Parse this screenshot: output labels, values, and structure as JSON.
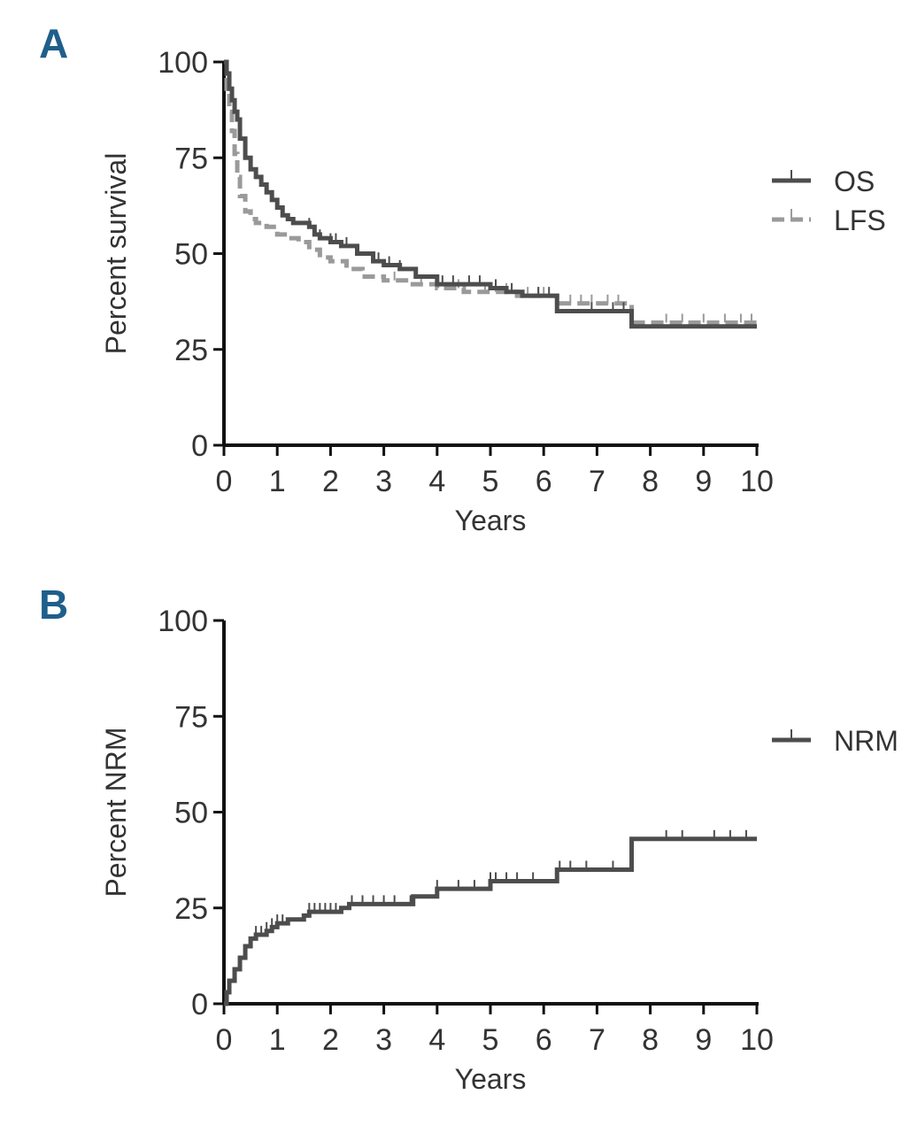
{
  "panel_color": "#1f5f8b",
  "chart_data": [
    {
      "panel_label": "A",
      "type": "line",
      "subtype": "kaplan-meier",
      "title": "",
      "xlabel": "Years",
      "ylabel": "Percent survival",
      "xlim": [
        0,
        10
      ],
      "ylim": [
        0,
        100
      ],
      "xticks": [
        0,
        1,
        2,
        3,
        4,
        5,
        6,
        7,
        8,
        9,
        10
      ],
      "xtick_labels": [
        "0",
        "1",
        "2",
        "3",
        "4",
        "5",
        "6",
        "7",
        "8",
        "9",
        "10"
      ],
      "yticks": [
        0,
        25,
        50,
        75,
        100
      ],
      "ytick_labels": [
        "0",
        "25",
        "50",
        "75",
        "100"
      ],
      "legend_position": "right",
      "series": [
        {
          "name": "OS",
          "color": "#4d4d4d",
          "dash": "solid",
          "x": [
            0,
            0.05,
            0.1,
            0.15,
            0.2,
            0.25,
            0.3,
            0.4,
            0.5,
            0.6,
            0.7,
            0.8,
            0.9,
            1.0,
            1.1,
            1.2,
            1.3,
            1.5,
            1.6,
            1.7,
            1.8,
            2.0,
            2.2,
            2.5,
            2.8,
            3.0,
            3.3,
            3.6,
            4.0,
            4.5,
            5.0,
            5.3,
            5.6,
            6.0,
            6.25,
            7.0,
            7.65,
            8.0,
            9.0,
            10.0
          ],
          "y": [
            100,
            97,
            93,
            90,
            87,
            85,
            80,
            75,
            72,
            70,
            68,
            66,
            64,
            62,
            60,
            59,
            58,
            58,
            57,
            55,
            54,
            53,
            52,
            50,
            48,
            47,
            46,
            44,
            42,
            42,
            41,
            40,
            39,
            39,
            35,
            35,
            31,
            31,
            31,
            31
          ],
          "censor_x": [
            1.6,
            1.8,
            2.0,
            2.1,
            2.3,
            2.5,
            2.9,
            3.1,
            3.3,
            4.1,
            4.3,
            4.6,
            4.8,
            5.1,
            5.4,
            5.9,
            6.1,
            6.9,
            7.3,
            7.5
          ]
        },
        {
          "name": "LFS",
          "color": "#9a9a9a",
          "dash": "dashed",
          "x": [
            0,
            0.05,
            0.1,
            0.15,
            0.2,
            0.25,
            0.3,
            0.4,
            0.5,
            0.6,
            0.8,
            1.0,
            1.2,
            1.4,
            1.6,
            1.8,
            2.0,
            2.3,
            2.6,
            3.0,
            3.5,
            4.0,
            4.5,
            5.0,
            5.5,
            6.0,
            6.25,
            7.0,
            7.65,
            8.0,
            9.0,
            10.0
          ],
          "y": [
            100,
            93,
            87,
            82,
            76,
            70,
            65,
            61,
            59,
            58,
            57,
            55,
            54,
            53,
            51,
            49,
            48,
            46,
            44,
            43,
            42,
            41,
            40,
            40,
            39,
            39,
            37,
            37,
            32,
            32,
            32,
            32
          ],
          "censor_x": [
            3.2,
            3.7,
            4.0,
            4.4,
            4.9,
            5.1,
            5.3,
            5.7,
            5.9,
            6.0,
            6.5,
            6.7,
            6.9,
            7.2,
            7.4,
            8.3,
            8.6,
            9.0,
            9.4,
            9.7,
            9.9
          ]
        }
      ]
    },
    {
      "panel_label": "B",
      "type": "line",
      "subtype": "cumulative-incidence",
      "title": "",
      "xlabel": "Years",
      "ylabel": "Percent NRM",
      "xlim": [
        0,
        10
      ],
      "ylim": [
        0,
        100
      ],
      "xticks": [
        0,
        1,
        2,
        3,
        4,
        5,
        6,
        7,
        8,
        9,
        10
      ],
      "xtick_labels": [
        "0",
        "1",
        "2",
        "3",
        "4",
        "5",
        "6",
        "7",
        "8",
        "9",
        "10"
      ],
      "yticks": [
        0,
        25,
        50,
        75,
        100
      ],
      "ytick_labels": [
        "0",
        "25",
        "50",
        "75",
        "100"
      ],
      "legend_position": "right",
      "series": [
        {
          "name": "NRM",
          "color": "#4d4d4d",
          "dash": "solid",
          "x": [
            0,
            0.05,
            0.1,
            0.2,
            0.3,
            0.4,
            0.5,
            0.6,
            0.8,
            0.9,
            1.0,
            1.2,
            1.5,
            1.6,
            2.0,
            2.2,
            2.35,
            3.0,
            3.45,
            3.55,
            3.95,
            4.0,
            4.9,
            5.0,
            6.2,
            6.25,
            7.6,
            7.65,
            10.0
          ],
          "y": [
            0,
            3,
            6,
            9,
            12,
            15,
            17,
            18,
            19,
            20,
            21,
            22,
            23,
            24,
            24,
            25,
            26,
            26,
            26,
            28,
            28,
            30,
            30,
            32,
            32,
            35,
            35,
            43,
            43
          ],
          "censor_x": [
            0.6,
            0.7,
            0.8,
            0.9,
            1.0,
            1.1,
            1.6,
            1.7,
            1.8,
            1.9,
            2.0,
            2.1,
            2.4,
            2.6,
            2.8,
            3.0,
            3.2,
            3.5,
            4.0,
            4.4,
            4.7,
            5.0,
            5.1,
            5.3,
            5.5,
            5.8,
            6.3,
            6.5,
            6.8,
            7.3,
            8.3,
            8.6,
            9.2,
            9.5,
            9.8
          ]
        }
      ]
    }
  ]
}
